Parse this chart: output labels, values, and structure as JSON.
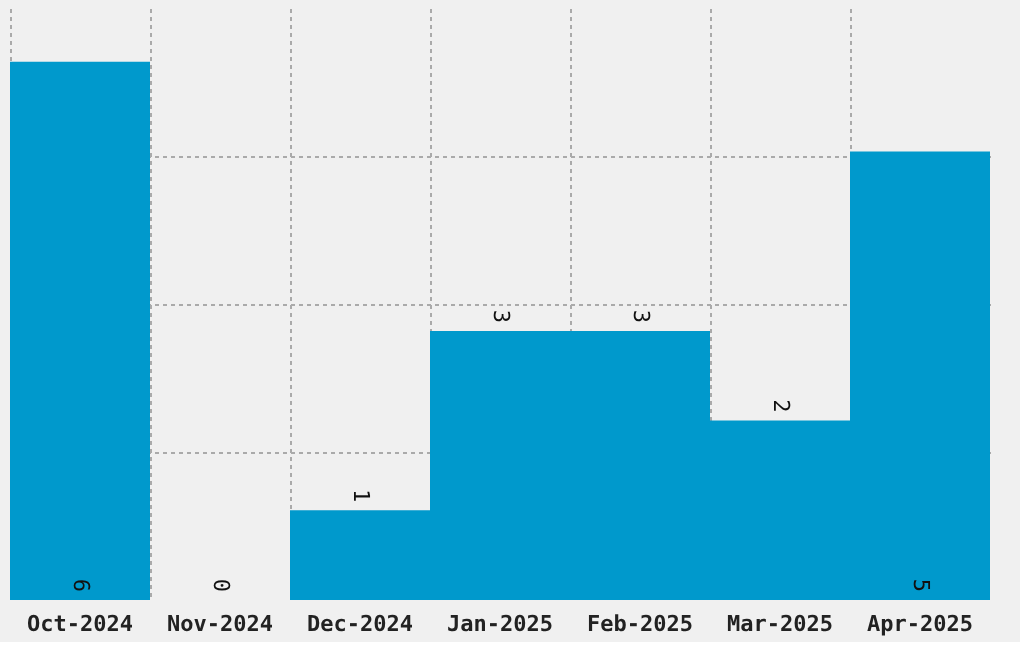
{
  "chart_data": {
    "type": "bar",
    "categories": [
      "Oct-2024",
      "Nov-2024",
      "Dec-2024",
      "Jan-2025",
      "Feb-2025",
      "Mar-2025",
      "Apr-2025"
    ],
    "values": [
      6,
      0,
      1,
      3,
      3,
      2,
      5
    ],
    "color": "#0099cc",
    "data_labels": true,
    "ylim": [
      0,
      6.6
    ],
    "yticks": [
      {
        "value": 1.65,
        "label": null
      },
      {
        "value": 3.3,
        "label": null
      },
      {
        "value": 4.95,
        "label": null
      }
    ],
    "grid": true,
    "tick_labels": "x"
  }
}
